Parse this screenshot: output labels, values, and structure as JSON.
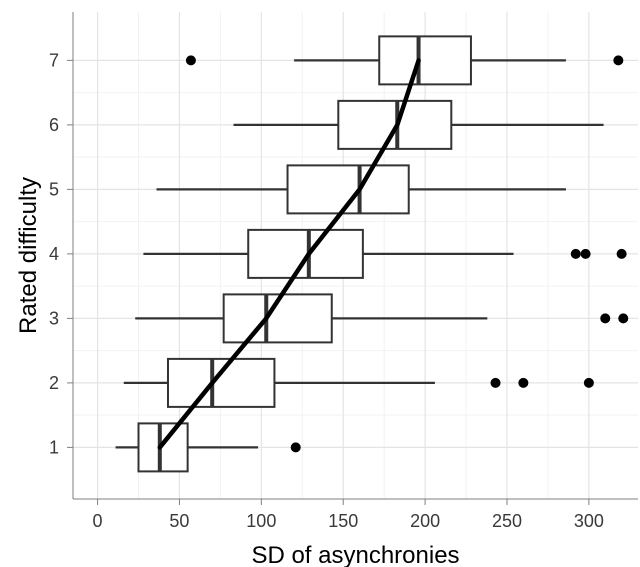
{
  "chart_data": {
    "type": "boxplot",
    "xlabel": "SD of asynchronies",
    "ylabel": "Rated difficulty",
    "xlim": [
      -15,
      330
    ],
    "ylim": [
      0.2,
      7.75
    ],
    "x_ticks": [
      0,
      50,
      100,
      150,
      200,
      250,
      300
    ],
    "y_ticks": [
      1,
      2,
      3,
      4,
      5,
      6,
      7
    ],
    "grid": true,
    "legend": "none",
    "boxes": [
      {
        "category": 1,
        "whisker_low": 11,
        "q1": 25,
        "median": 38,
        "q3": 55,
        "whisker_high": 98,
        "outliers": [
          121
        ]
      },
      {
        "category": 2,
        "whisker_low": 16,
        "q1": 43,
        "median": 70,
        "q3": 108,
        "whisker_high": 206,
        "outliers": [
          243,
          260,
          300
        ]
      },
      {
        "category": 3,
        "whisker_low": 23,
        "q1": 77,
        "median": 103,
        "q3": 143,
        "whisker_high": 238,
        "outliers": [
          310,
          321
        ]
      },
      {
        "category": 4,
        "whisker_low": 28,
        "q1": 92,
        "median": 129,
        "q3": 162,
        "whisker_high": 254,
        "outliers": [
          292,
          298,
          320
        ]
      },
      {
        "category": 5,
        "whisker_low": 36,
        "q1": 116,
        "median": 160,
        "q3": 190,
        "whisker_high": 286,
        "outliers": []
      },
      {
        "category": 6,
        "whisker_low": 83,
        "q1": 147,
        "median": 183,
        "q3": 216,
        "whisker_high": 309,
        "outliers": []
      },
      {
        "category": 7,
        "whisker_low": 120,
        "q1": 172,
        "median": 196,
        "q3": 228,
        "whisker_high": 286,
        "outliers": [
          57,
          318
        ]
      }
    ],
    "trend_line": {
      "x": [
        38,
        70,
        103,
        129,
        160,
        183,
        196
      ],
      "y": [
        1,
        2,
        3,
        4,
        5,
        6,
        7
      ]
    },
    "colors": {
      "box_fill": "#ffffff",
      "box_stroke": "#333333",
      "median": "#333333",
      "trend": "#000000",
      "outlier": "#000000",
      "grid_major": "#e4e4e4",
      "grid_minor": "#f2f2f2",
      "axis": "#7f7f7f"
    }
  }
}
